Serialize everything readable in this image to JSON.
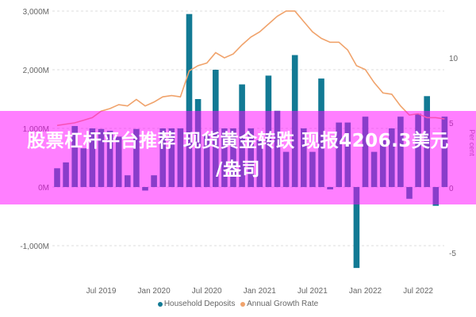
{
  "chart_data": {
    "type": "bar+line",
    "title": "",
    "categories": [
      "Feb 2019",
      "Mar 2019",
      "Apr 2019",
      "May 2019",
      "Jun 2019",
      "Jul 2019",
      "Aug 2019",
      "Sep 2019",
      "Oct 2019",
      "Nov 2019",
      "Dec 2019",
      "Jan 2020",
      "Feb 2020",
      "Mar 2020",
      "Apr 2020",
      "May 2020",
      "Jun 2020",
      "Jul 2020",
      "Aug 2020",
      "Sep 2020",
      "Oct 2020",
      "Nov 2020",
      "Dec 2020",
      "Jan 2021",
      "Feb 2021",
      "Mar 2021",
      "Apr 2021",
      "May 2021",
      "Jun 2021",
      "Jul 2021",
      "Aug 2021",
      "Sep 2021",
      "Oct 2021",
      "Nov 2021",
      "Dec 2021",
      "Jan 2022",
      "Feb 2022",
      "Mar 2022",
      "Apr 2022",
      "May 2022",
      "Jun 2022",
      "Jul 2022",
      "Aug 2022",
      "Sep 2022",
      "Oct 2022"
    ],
    "x_tick_labels": [
      "Jul 2019",
      "Jan 2020",
      "Jul 2020",
      "Jan 2021",
      "Jul 2021",
      "Jan 2022",
      "Jul 2022"
    ],
    "series": [
      {
        "name": "Household Deposits",
        "axis": "left",
        "type": "bar",
        "color": "#127a94",
        "unit": "M",
        "values": [
          320,
          420,
          1040,
          660,
          1000,
          990,
          960,
          860,
          200,
          990,
          -60,
          200,
          1000,
          1000,
          1000,
          2950,
          1500,
          900,
          2000,
          1000,
          1000,
          1750,
          1000,
          800,
          1900,
          1300,
          600,
          2250,
          1000,
          600,
          1850,
          -40,
          1100,
          1100,
          -1380,
          1200,
          600,
          800,
          1000,
          1200,
          -200,
          1250,
          1550,
          -320,
          1200
        ]
      },
      {
        "name": "Annual Growth Rate",
        "axis": "right",
        "type": "line",
        "color": "#f0a36c",
        "unit": "Per cent",
        "values": [
          4.8,
          4.9,
          5.0,
          5.2,
          5.4,
          5.9,
          6.1,
          6.4,
          6.3,
          6.8,
          6.3,
          6.6,
          7.0,
          7.1,
          7.0,
          9.0,
          9.4,
          9.6,
          10.4,
          10.0,
          10.3,
          11.0,
          11.6,
          12.0,
          12.6,
          13.2,
          13.6,
          13.6,
          12.8,
          12.0,
          11.5,
          11.2,
          11.2,
          10.6,
          9.4,
          9.1,
          8.1,
          7.3,
          7.2,
          6.3,
          5.6,
          5.7,
          5.4,
          5.4,
          5.3
        ]
      }
    ],
    "ylabel_left": "",
    "ylabel_right": "Per cent",
    "yticks_left": [
      "3,000M",
      "2,000M",
      "1,000M",
      "0M",
      "-1,000M"
    ],
    "yticks_right": [
      "10",
      "5",
      "0",
      "-5"
    ],
    "ylim_left": [
      -1500,
      3000
    ],
    "ylim_right": [
      -6,
      14
    ],
    "grid": "horizontal dashed",
    "legend_position": "bottom"
  },
  "legend": {
    "items": [
      {
        "label": "Household Deposits",
        "color": "#127a94"
      },
      {
        "label": "Annual Growth Rate",
        "color": "#f0a36c"
      }
    ]
  },
  "overlay": {
    "line1": "股票杠杆平台推荐 现货黄金转跌 现报4206.3美元",
    "line2": "/盎司",
    "color": "#ff00ff"
  }
}
